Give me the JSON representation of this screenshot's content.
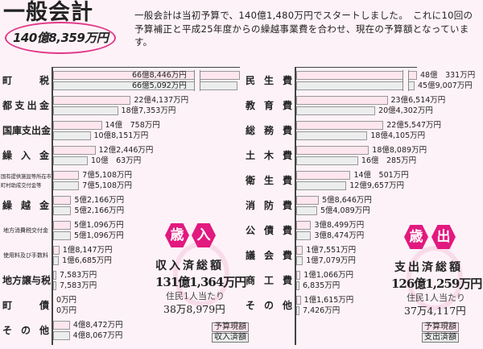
{
  "header": {
    "title": "一般会計",
    "total": "140億8,359万円",
    "intro": "一般会計は当初予算で、140億1,480万円でスタートしました。　これに10回の予算補正と平成25年度からの繰越事業費を合わせ、現在の予算額となっています。"
  },
  "colors": {
    "budget": "#fde6ee",
    "actual": "#ebeeed",
    "accent": "#e2197f"
  },
  "chart_data": [
    {
      "type": "bar",
      "title": "歳入",
      "unit": "万円",
      "legend": [
        "予算現額",
        "収入済額"
      ],
      "categories": [
        "町　　税",
        "都支出金",
        "国庫支出金",
        "繰入金",
        "国有提供施設等所在市町村助成交付金等",
        "繰越金",
        "地方消費税交付金",
        "使用料及び手数料",
        "地方譲与税",
        "町　　債",
        "その他"
      ],
      "series": [
        {
          "name": "予算現額",
          "values": [
            668446,
            224137,
            140758,
            122446,
            75108,
            52166,
            51096,
            18147,
            7583,
            0,
            48472
          ],
          "labels": [
            "66億8,446万円",
            "22億4,137万円",
            "14億　758万円",
            "12億2,446万円",
            "7億5,108万円",
            "5億2,166万円",
            "5億1,096万円",
            "1億8,147万円",
            "7,583万円",
            "0万円",
            "4億8,472万円"
          ]
        },
        {
          "name": "収入済額",
          "values": [
            665092,
            187353,
            108151,
            100063,
            75108,
            52166,
            51096,
            16685,
            7583,
            0,
            48067
          ],
          "labels": [
            "66億5,092万円",
            "18億7,353万円",
            "10億8,151万円",
            "10億　63万円",
            "7億5,108万円",
            "5億2,166万円",
            "5億1,096万円",
            "1億6,685万円",
            "7,583万円",
            "0万円",
            "4億8,067万円"
          ]
        }
      ],
      "summary": {
        "badge": [
          "歳",
          "入"
        ],
        "label": "収入済総額",
        "amount": "131億1,364万円",
        "per_label": "住民1人当たり",
        "per_amount": "38万8,979円"
      }
    },
    {
      "type": "bar",
      "title": "歳出",
      "unit": "万円",
      "legend": [
        "予算現額",
        "支出済額"
      ],
      "categories": [
        "民生費",
        "教育費",
        "総務費",
        "土木費",
        "衛生費",
        "消防費",
        "公債費",
        "議会費",
        "商工費",
        "その他"
      ],
      "series": [
        {
          "name": "予算現額",
          "values": [
            480331,
            236514,
            225547,
            188089,
            140501,
            58646,
            38499,
            17551,
            11066,
            11615
          ],
          "labels": [
            "48億　331万円",
            "23億6,514万円",
            "22億5,547万円",
            "18億8,089万円",
            "14億　501万円",
            "5億8,646万円",
            "3億8,499万円",
            "1億7,551万円",
            "1億1,066万円",
            "1億1,615万円"
          ]
        },
        {
          "name": "支出済額",
          "values": [
            459007,
            204302,
            184105,
            160285,
            129657,
            54089,
            38474,
            17079,
            6835,
            7426
          ],
          "labels": [
            "45億9,007万円",
            "20億4,302万円",
            "18億4,105万円",
            "16億　285万円",
            "12億9,657万円",
            "5億4,089万円",
            "3億8,474万円",
            "1億7,079万円",
            "6,835万円",
            "7,426万円"
          ]
        }
      ],
      "summary": {
        "badge": [
          "歳",
          "出"
        ],
        "label": "支出済総額",
        "amount": "126億1,259万円",
        "per_label": "住民1人当たり",
        "per_amount": "37万4,117円"
      }
    }
  ]
}
